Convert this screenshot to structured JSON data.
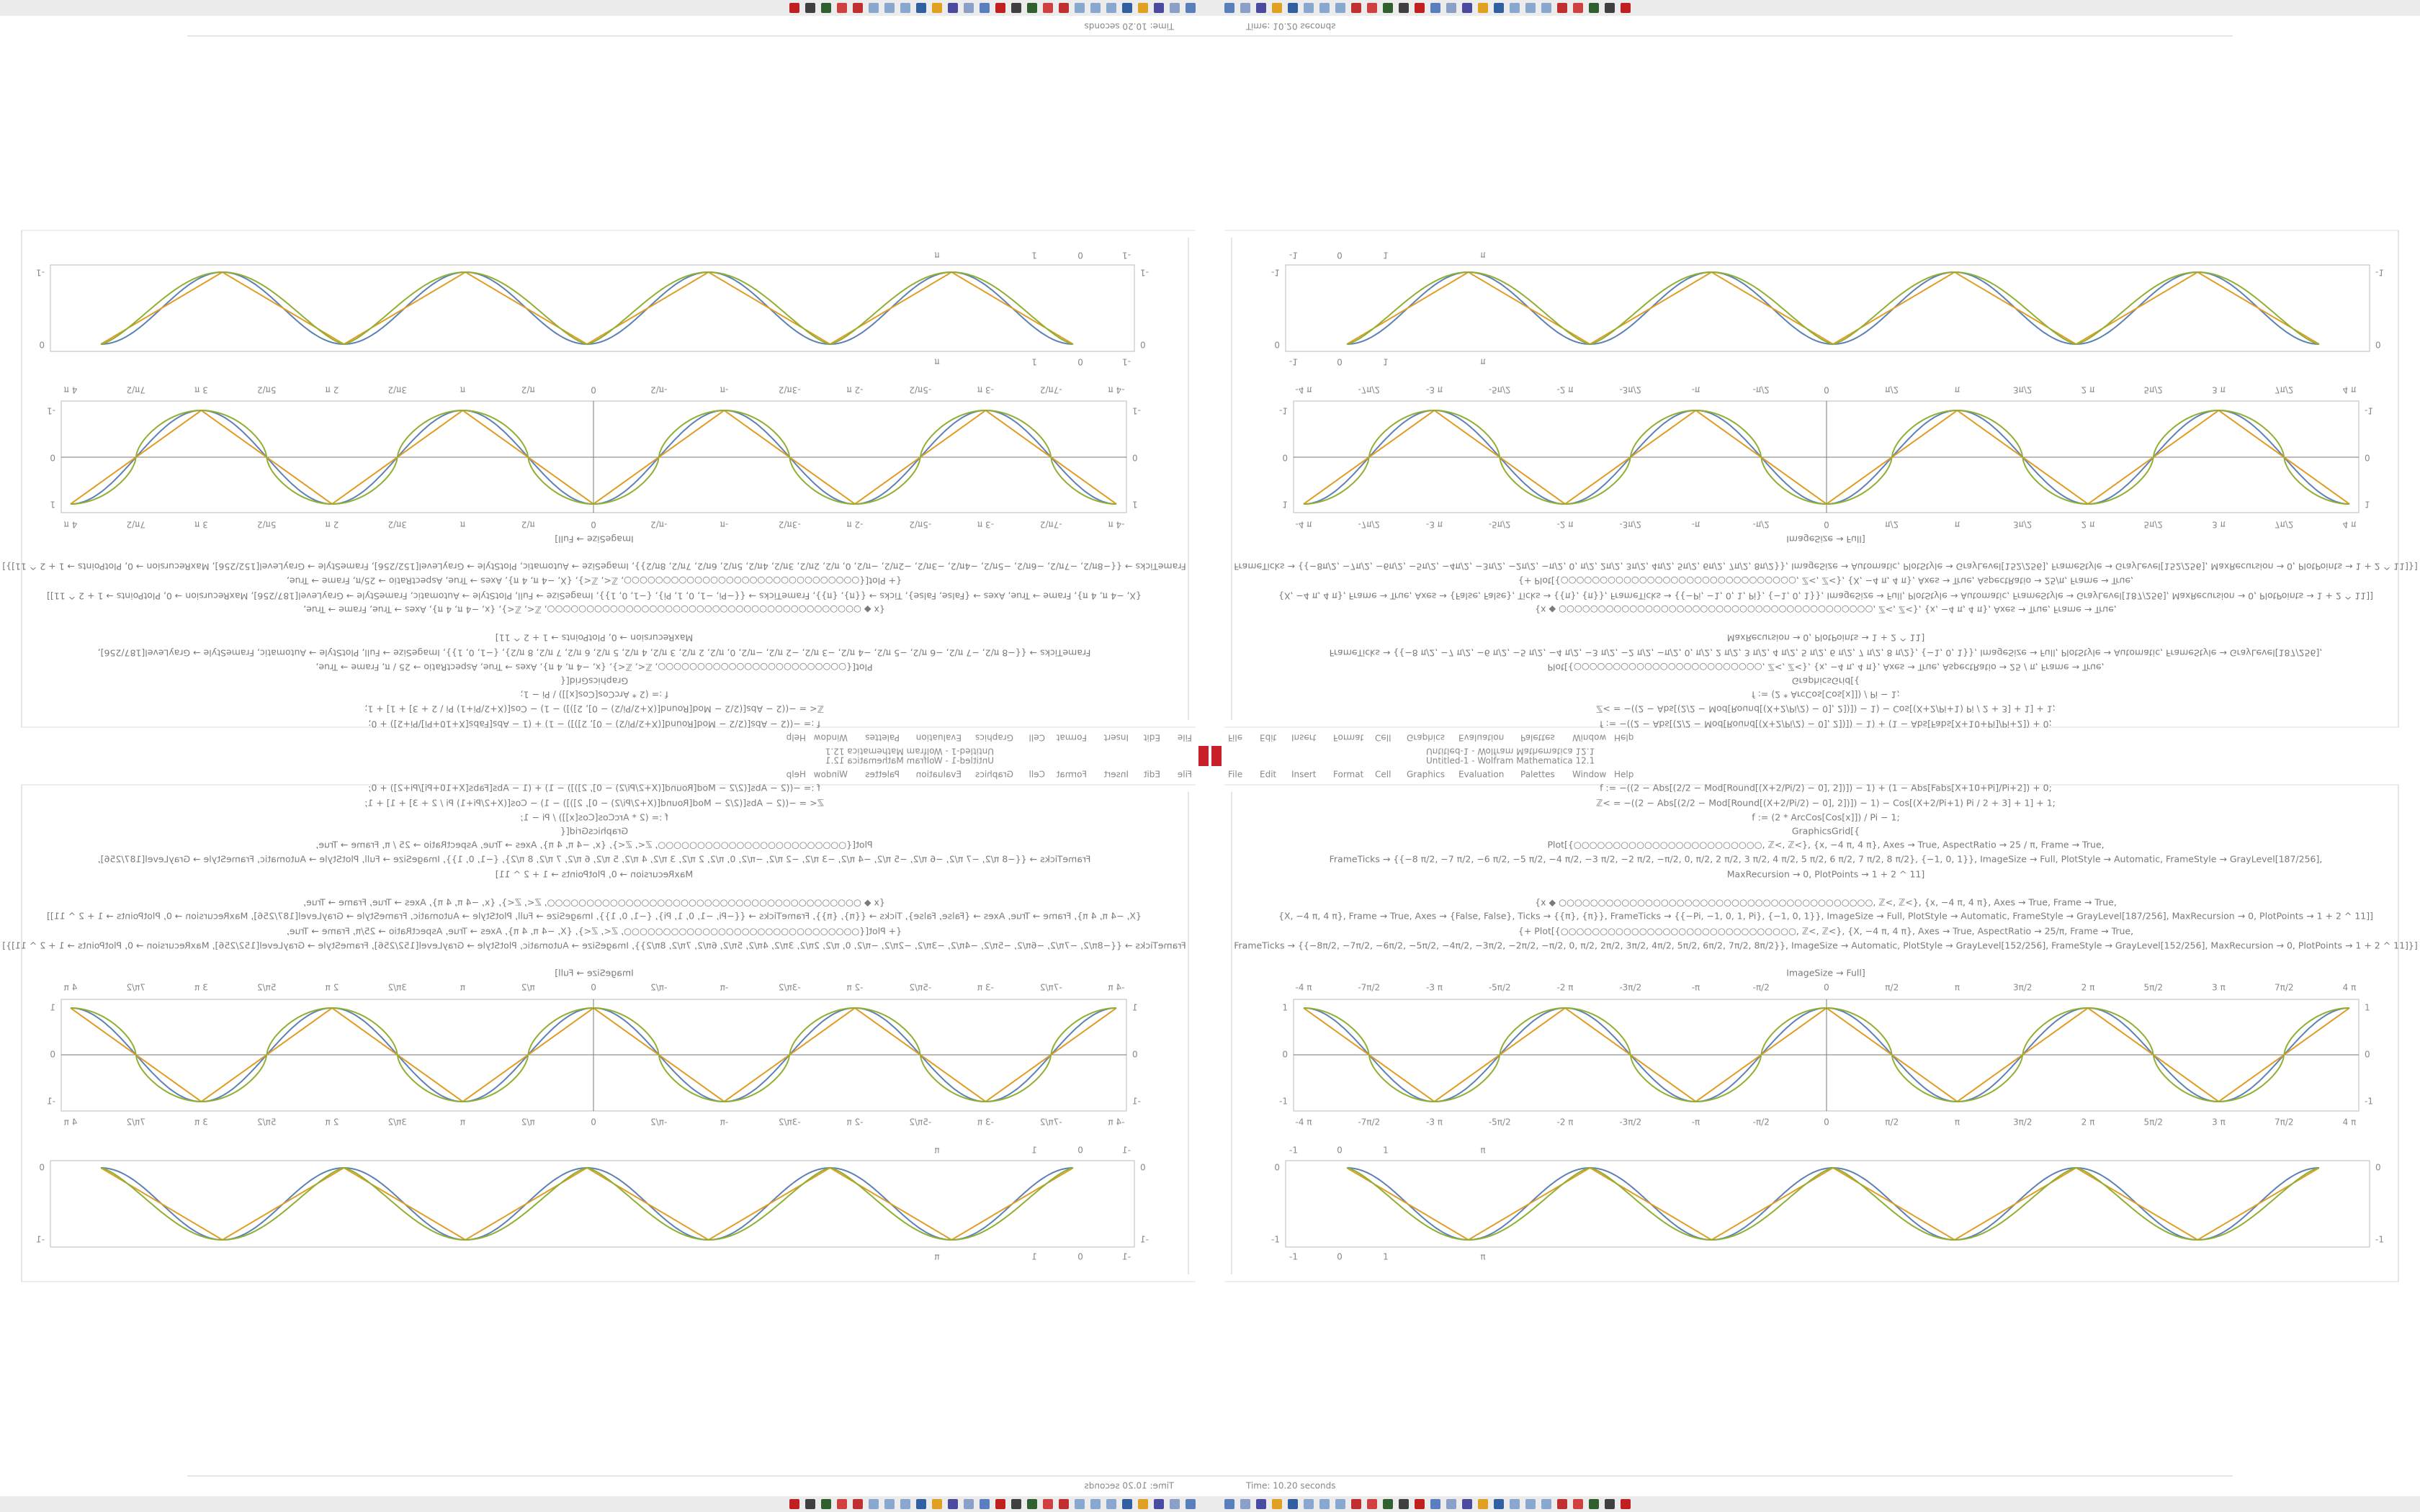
{
  "window": {
    "title": "Untitled-1 - Wolfram Mathematica 12.1",
    "menu": [
      "File",
      "Edit",
      "Insert",
      "Format",
      "Cell",
      "Graphics",
      "Evaluation",
      "Palettes",
      "Window",
      "Help"
    ],
    "status": "Time: 10.20 seconds"
  },
  "notebook": {
    "code": [
      "f := −((2 − Abs[(2/2 − Mod[Round[(X+2/Pi/2) − 0], 2])]) − 1) + (1 − Abs[Fabs[X+10+Pi]/Pi+2]) + 0;",
      "ℤ< = −((2 − Abs[(2/2 − Mod[Round[(X+2/Pi/2) − 0], 2])]) − 1) − Cos[(X+2/Pi+1) Pi / 2 + 3] + 1] + 1;",
      "f := (2 * ArcCos[Cos[x]]) / Pi − 1;",
      "GraphicsGrid[{",
      "Plot[{○○○○○○○○○○○○○○○○○○○○○○○○, ℤ<, ℤ<}, {x, −4 π, 4 π}, Axes → True, AspectRatio → 25 / π, Frame → True,",
      "FrameTicks → {{−8 π/2, −7 π/2, −6 π/2, −5 π/2, −4 π/2, −3 π/2, −2 π/2, −π/2, 0, π/2, 2 π/2, 3 π/2, 4 π/2, 5 π/2, 6 π/2, 7 π/2, 8 π/2}, {−1, 0, 1}}, ImageSize → Full, PlotStyle → Automatic, FrameStyle → GrayLevel[187/256],",
      "MaxRecursion → 0, PlotPoints → 1 + 2 ^ 11]",
      "{x ◆ ○○○○○○○○○○○○○○○○○○○○○○○○○○○○○○○○○○○○○○○○, ℤ<, ℤ<}, {x, −4 π, 4 π}, Axes → True, Frame → True,",
      "{X, −4 π, 4 π}, Frame → True, Axes → {False, False}, Ticks → {{π}, {π}}, FrameTicks → {{−Pi, −1, 0, 1, Pi}, {−1, 0, 1}}, ImageSize → Full, PlotStyle → Automatic, FrameStyle → GrayLevel[187/256], MaxRecursion → 0, PlotPoints → 1 + 2 ^ 11]]",
      "{+ Plot[{○○○○○○○○○○○○○○○○○○○○○○○○○○○○○○, ℤ<, ℤ<}, {X, −4 π, 4 π}, Axes → True, AspectRatio → 25/π, Frame → True,",
      "FrameTicks → {{−8π/2, −7π/2, −6π/2, −5π/2, −4π/2, −3π/2, −2π/2, −π/2, 0, π/2, 2π/2, 3π/2, 4π/2, 5π/2, 6π/2, 7π/2, 8π/2}}, ImageSize → Automatic, PlotStyle → GrayLevel[152/256], FrameStyle → GrayLevel[152/256], MaxRecursion → 0, PlotPoints → 1 + 2 ^ 11]}]",
      "ImageSize → Full]"
    ]
  },
  "plot_wave": {
    "xticks": [
      "-4 π",
      "-7π/2",
      "-3 π",
      "-5π/2",
      "-2 π",
      "-3π/2",
      "-π",
      "-π/2",
      "0",
      "π/2",
      "π",
      "3π/2",
      "2 π",
      "5π/2",
      "3 π",
      "7π/2",
      "4 π"
    ],
    "yticks": [
      "1",
      "0",
      "-1"
    ]
  },
  "plot_hump": {
    "xticks": [
      "-1",
      "0",
      "1",
      "π"
    ],
    "yticks": [
      "0",
      "-1"
    ]
  }
}
